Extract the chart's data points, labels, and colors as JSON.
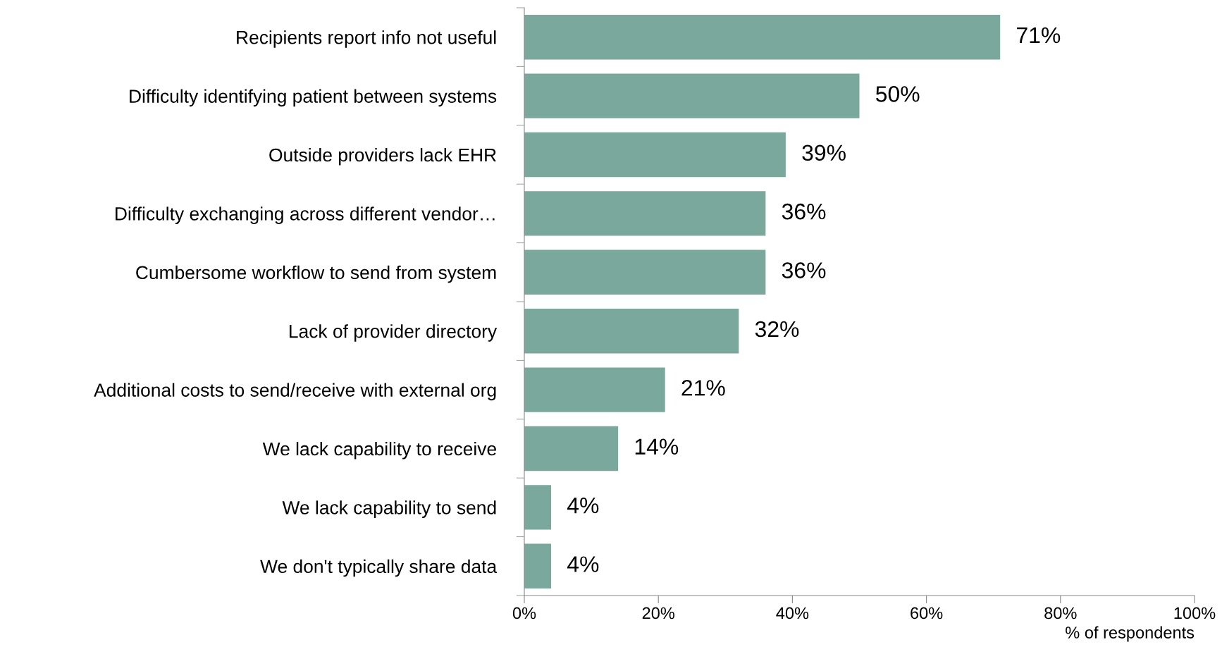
{
  "chart_data": {
    "type": "bar",
    "orientation": "horizontal",
    "categories": [
      "Recipients report info not useful",
      "Difficulty identifying patient between systems",
      "Outside providers lack EHR",
      "Difficulty exchanging across different vendor…",
      "Cumbersome workflow to send from system",
      "Lack of provider directory",
      "Additional costs to send/receive with external org",
      "We lack capability to receive",
      "We lack capability to send",
      "We don't typically share data"
    ],
    "values": [
      71,
      50,
      39,
      36,
      36,
      32,
      21,
      14,
      4,
      4
    ],
    "value_labels": [
      "71%",
      "50%",
      "39%",
      "36%",
      "36%",
      "32%",
      "21%",
      "14%",
      "4%",
      "4%"
    ],
    "color": "#7ba89c",
    "xlim": [
      0,
      100
    ],
    "xticks": [
      {
        "value": 0,
        "label": "0%"
      },
      {
        "value": 20,
        "label": "20%"
      },
      {
        "value": 40,
        "label": "40%"
      },
      {
        "value": 60,
        "label": "60%"
      },
      {
        "value": 80,
        "label": "80%"
      },
      {
        "value": 100,
        "label": "100%"
      }
    ],
    "xlabel": "% of respondents",
    "grid": false,
    "legend": false
  }
}
